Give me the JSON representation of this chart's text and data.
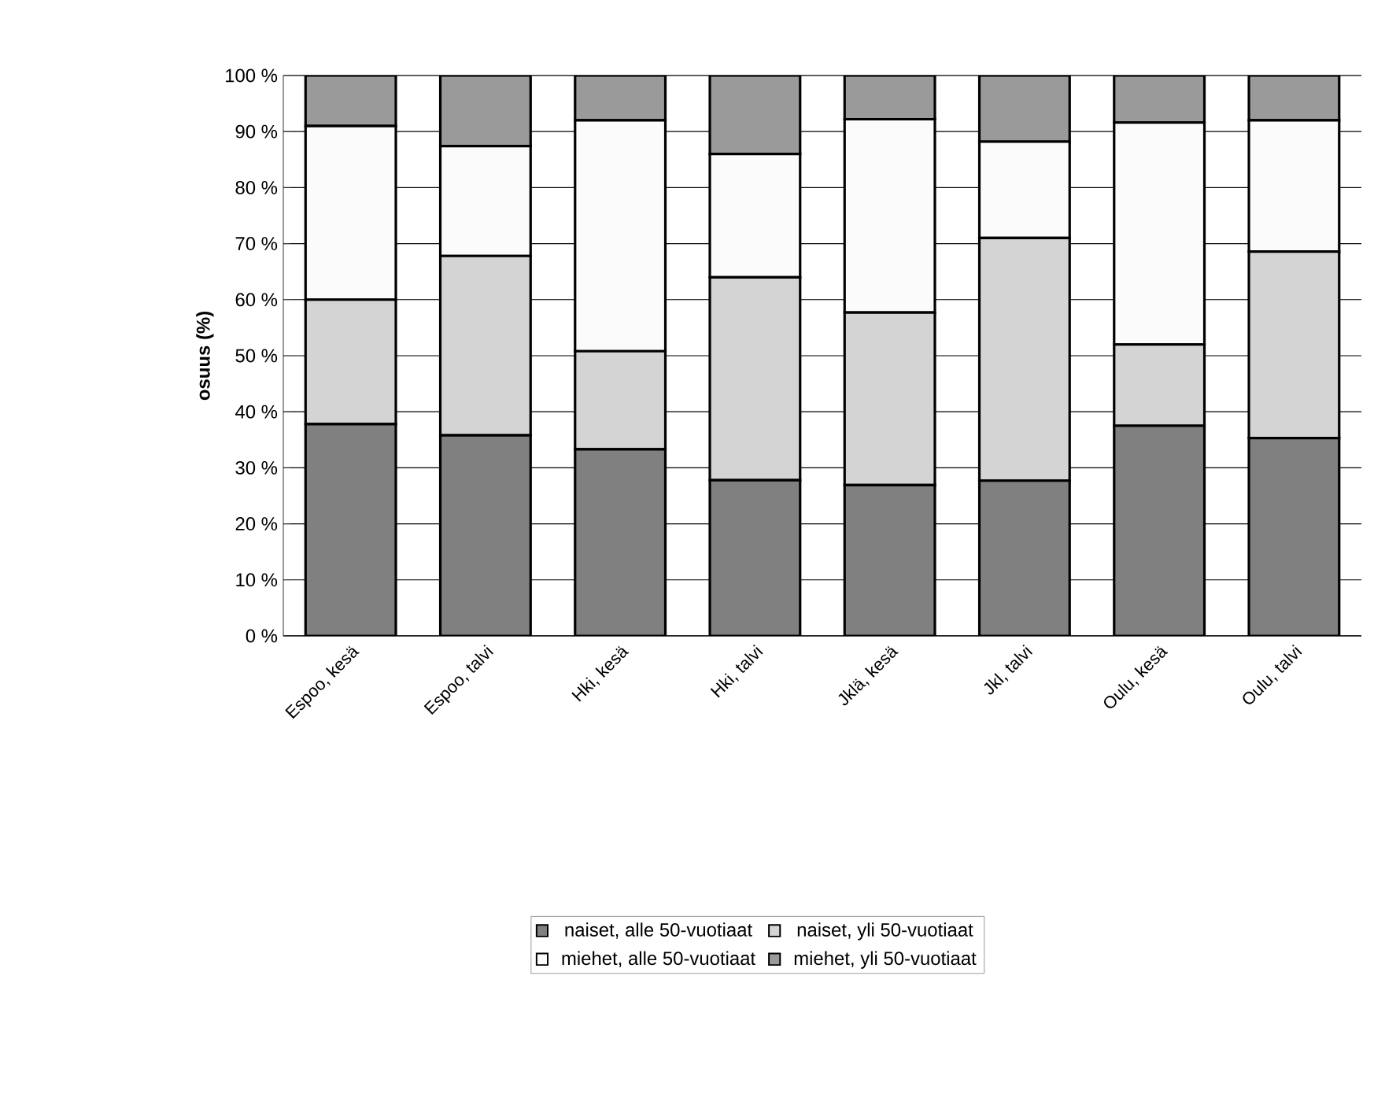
{
  "chart_data": {
    "type": "bar",
    "stacked": true,
    "ylabel": "osuus (%)",
    "categories": [
      "Espoo, kesä",
      "Espoo, talvi",
      "Hki, kesä",
      "Hki, talvi",
      "Jklä, kesä",
      "Jkl, talvi",
      "Oulu, kesä",
      "Oulu, talvi"
    ],
    "series": [
      {
        "name": "naiset, alle 50-vuotiaat",
        "color": "#808080",
        "values": [
          37.8,
          35.8,
          33.3,
          27.8,
          26.9,
          27.7,
          37.5,
          35.3
        ]
      },
      {
        "name": "naiset, yli 50-vuotiaat",
        "color": "#d4d4d4",
        "values": [
          22.2,
          32,
          17.5,
          36.2,
          30.8,
          43.3,
          14.5,
          33.3
        ]
      },
      {
        "name": "miehet, alle 50-vuotiaat",
        "color": "#fbfbfb",
        "values": [
          31,
          19.6,
          41.2,
          22,
          34.5,
          17.2,
          39.6,
          23.4
        ]
      },
      {
        "name": "miehet, yli 50-vuotiaat",
        "color": "#9a9a9a",
        "values": [
          9,
          12.6,
          8,
          14,
          7.8,
          11.8,
          8.4,
          8
        ]
      }
    ],
    "ylim": [
      0,
      100
    ],
    "yticks": [
      {
        "value": 0,
        "label": "0 %"
      },
      {
        "value": 10,
        "label": "10 %"
      },
      {
        "value": 20,
        "label": "20 %"
      },
      {
        "value": 30,
        "label": "30 %"
      },
      {
        "value": 40,
        "label": "40 %"
      },
      {
        "value": 50,
        "label": "50 %"
      },
      {
        "value": 60,
        "label": "60 %"
      },
      {
        "value": 70,
        "label": "70 %"
      },
      {
        "value": 80,
        "label": "80 %"
      },
      {
        "value": 90,
        "label": "90 %"
      },
      {
        "value": 100,
        "label": "100 %"
      }
    ],
    "grid": "y",
    "legend": "bottom"
  }
}
